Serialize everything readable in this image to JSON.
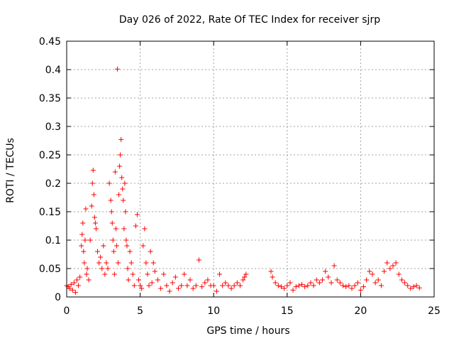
{
  "chart_data": {
    "type": "scatter",
    "title": "Day 026 of 2022, Rate Of TEC Index for receiver sjrp",
    "xlabel": "GPS time / hours",
    "ylabel": "ROTI / TECUs",
    "xlim": [
      0,
      25
    ],
    "ylim": [
      0,
      0.45
    ],
    "x_ticks": [
      0,
      5,
      10,
      15,
      20,
      25
    ],
    "x_tick_labels": [
      "0",
      "5",
      "10",
      "15",
      "20",
      "25"
    ],
    "y_ticks": [
      0,
      0.05,
      0.1,
      0.15,
      0.2,
      0.25,
      0.3,
      0.35,
      0.4,
      0.45
    ],
    "y_tick_labels": [
      "0",
      "0.05",
      "0.1",
      "0.15",
      "0.2",
      "0.25",
      "0.3",
      "0.35",
      "0.4",
      "0.45"
    ],
    "grid": true,
    "marker": "+",
    "marker_color": "#ff0000",
    "series": [
      {
        "name": "ROTI",
        "points": [
          [
            0.0,
            0.02
          ],
          [
            0.1,
            0.018
          ],
          [
            0.2,
            0.015
          ],
          [
            0.3,
            0.022
          ],
          [
            0.4,
            0.012
          ],
          [
            0.5,
            0.025
          ],
          [
            0.6,
            0.008
          ],
          [
            0.7,
            0.03
          ],
          [
            0.8,
            0.02
          ],
          [
            0.9,
            0.035
          ],
          [
            1.0,
            0.09
          ],
          [
            1.05,
            0.11
          ],
          [
            1.1,
            0.13
          ],
          [
            1.15,
            0.08
          ],
          [
            1.2,
            0.06
          ],
          [
            1.25,
            0.1
          ],
          [
            1.3,
            0.155
          ],
          [
            1.35,
            0.04
          ],
          [
            1.4,
            0.05
          ],
          [
            1.5,
            0.03
          ],
          [
            1.6,
            0.1
          ],
          [
            1.7,
            0.16
          ],
          [
            1.75,
            0.2
          ],
          [
            1.8,
            0.223
          ],
          [
            1.85,
            0.18
          ],
          [
            1.9,
            0.14
          ],
          [
            1.95,
            0.13
          ],
          [
            2.0,
            0.12
          ],
          [
            2.1,
            0.08
          ],
          [
            2.2,
            0.06
          ],
          [
            2.3,
            0.07
          ],
          [
            2.4,
            0.05
          ],
          [
            2.5,
            0.09
          ],
          [
            2.6,
            0.04
          ],
          [
            2.7,
            0.06
          ],
          [
            2.8,
            0.05
          ],
          [
            2.9,
            0.2
          ],
          [
            3.0,
            0.17
          ],
          [
            3.05,
            0.15
          ],
          [
            3.1,
            0.13
          ],
          [
            3.15,
            0.1
          ],
          [
            3.2,
            0.08
          ],
          [
            3.25,
            0.04
          ],
          [
            3.3,
            0.22
          ],
          [
            3.35,
            0.12
          ],
          [
            3.4,
            0.09
          ],
          [
            3.45,
            0.401
          ],
          [
            3.5,
            0.06
          ],
          [
            3.55,
            0.18
          ],
          [
            3.6,
            0.23
          ],
          [
            3.65,
            0.25
          ],
          [
            3.7,
            0.277
          ],
          [
            3.75,
            0.21
          ],
          [
            3.8,
            0.19
          ],
          [
            3.85,
            0.17
          ],
          [
            3.9,
            0.12
          ],
          [
            3.95,
            0.2
          ],
          [
            4.0,
            0.15
          ],
          [
            4.05,
            0.1
          ],
          [
            4.1,
            0.09
          ],
          [
            4.15,
            0.05
          ],
          [
            4.2,
            0.03
          ],
          [
            4.3,
            0.08
          ],
          [
            4.4,
            0.06
          ],
          [
            4.5,
            0.04
          ],
          [
            4.6,
            0.02
          ],
          [
            4.7,
            0.125
          ],
          [
            4.8,
            0.145
          ],
          [
            4.9,
            0.03
          ],
          [
            5.0,
            0.02
          ],
          [
            5.1,
            0.015
          ],
          [
            5.2,
            0.09
          ],
          [
            5.3,
            0.12
          ],
          [
            5.4,
            0.06
          ],
          [
            5.5,
            0.04
          ],
          [
            5.6,
            0.02
          ],
          [
            5.7,
            0.08
          ],
          [
            5.8,
            0.025
          ],
          [
            5.9,
            0.06
          ],
          [
            6.0,
            0.045
          ],
          [
            6.2,
            0.03
          ],
          [
            6.4,
            0.015
          ],
          [
            6.6,
            0.04
          ],
          [
            6.8,
            0.02
          ],
          [
            7.0,
            0.01
          ],
          [
            7.2,
            0.025
          ],
          [
            7.4,
            0.035
          ],
          [
            7.6,
            0.015
          ],
          [
            7.8,
            0.02
          ],
          [
            8.0,
            0.04
          ],
          [
            8.2,
            0.02
          ],
          [
            8.4,
            0.03
          ],
          [
            8.6,
            0.015
          ],
          [
            8.8,
            0.02
          ],
          [
            9.0,
            0.065
          ],
          [
            9.2,
            0.018
          ],
          [
            9.4,
            0.025
          ],
          [
            9.6,
            0.03
          ],
          [
            9.8,
            0.02
          ],
          [
            10.0,
            0.02
          ],
          [
            10.2,
            0.01
          ],
          [
            10.4,
            0.04
          ],
          [
            10.6,
            0.02
          ],
          [
            10.8,
            0.025
          ],
          [
            11.0,
            0.02
          ],
          [
            11.2,
            0.015
          ],
          [
            11.4,
            0.02
          ],
          [
            11.6,
            0.025
          ],
          [
            11.8,
            0.02
          ],
          [
            12.0,
            0.03
          ],
          [
            12.1,
            0.035
          ],
          [
            12.2,
            0.04
          ],
          [
            13.9,
            0.045
          ],
          [
            14.0,
            0.035
          ],
          [
            14.2,
            0.025
          ],
          [
            14.4,
            0.02
          ],
          [
            14.6,
            0.018
          ],
          [
            14.8,
            0.015
          ],
          [
            15.0,
            0.02
          ],
          [
            15.2,
            0.025
          ],
          [
            15.4,
            0.012
          ],
          [
            15.6,
            0.018
          ],
          [
            15.8,
            0.02
          ],
          [
            16.0,
            0.022
          ],
          [
            16.2,
            0.018
          ],
          [
            16.4,
            0.02
          ],
          [
            16.6,
            0.025
          ],
          [
            16.8,
            0.02
          ],
          [
            17.0,
            0.03
          ],
          [
            17.2,
            0.025
          ],
          [
            17.4,
            0.03
          ],
          [
            17.6,
            0.045
          ],
          [
            17.8,
            0.035
          ],
          [
            18.0,
            0.025
          ],
          [
            18.2,
            0.055
          ],
          [
            18.4,
            0.03
          ],
          [
            18.6,
            0.025
          ],
          [
            18.8,
            0.02
          ],
          [
            19.0,
            0.018
          ],
          [
            19.2,
            0.02
          ],
          [
            19.4,
            0.015
          ],
          [
            19.6,
            0.02
          ],
          [
            19.8,
            0.025
          ],
          [
            20.0,
            0.012
          ],
          [
            20.2,
            0.018
          ],
          [
            20.4,
            0.03
          ],
          [
            20.6,
            0.045
          ],
          [
            20.8,
            0.04
          ],
          [
            21.0,
            0.025
          ],
          [
            21.2,
            0.03
          ],
          [
            21.4,
            0.02
          ],
          [
            21.6,
            0.045
          ],
          [
            21.8,
            0.06
          ],
          [
            22.0,
            0.05
          ],
          [
            22.2,
            0.055
          ],
          [
            22.4,
            0.06
          ],
          [
            22.6,
            0.04
          ],
          [
            22.8,
            0.03
          ],
          [
            23.0,
            0.025
          ],
          [
            23.2,
            0.02
          ],
          [
            23.4,
            0.015
          ],
          [
            23.6,
            0.018
          ],
          [
            23.8,
            0.02
          ],
          [
            24.0,
            0.016
          ]
        ]
      }
    ]
  }
}
